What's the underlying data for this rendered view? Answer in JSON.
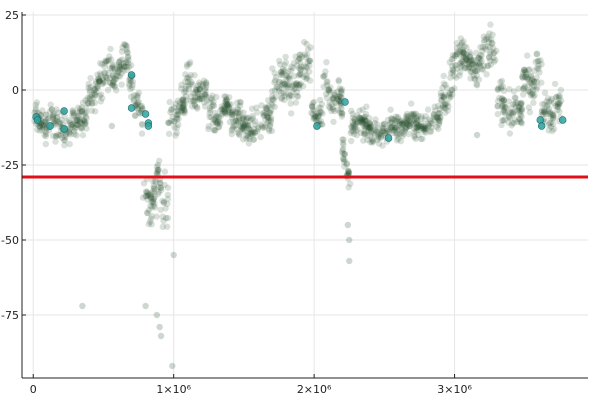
{
  "chart_data": {
    "type": "scatter",
    "xlim": [
      -80000,
      3950000
    ],
    "ylim": [
      -96,
      26
    ],
    "grid": true,
    "legend": "none",
    "x_ticks": [
      {
        "value": 0,
        "label": "0"
      },
      {
        "value": 1000000,
        "label": "1×10⁶"
      },
      {
        "value": 2000000,
        "label": "2×10⁶"
      },
      {
        "value": 3000000,
        "label": "3×10⁶"
      }
    ],
    "y_ticks": [
      {
        "value": 25,
        "label": "25"
      },
      {
        "value": 0,
        "label": "0"
      },
      {
        "value": -25,
        "label": "-25"
      },
      {
        "value": -50,
        "label": "-50"
      },
      {
        "value": -75,
        "label": "-75"
      }
    ],
    "threshold": {
      "value": -29,
      "color": "#e0101a"
    },
    "colors": {
      "main": "#1e4a24",
      "highlight": "#2fa3a0"
    },
    "segments": [
      {
        "x": [
          0,
          80000
        ],
        "y_start": -8,
        "y_end": -12,
        "spread": 4
      },
      {
        "x": [
          80000,
          380000
        ],
        "y_start": -13,
        "y_end": -10,
        "spread": 5
      },
      {
        "x": [
          380000,
          480000
        ],
        "y_start": -5,
        "y_end": 3,
        "spread": 5
      },
      {
        "x": [
          480000,
          680000
        ],
        "y_start": 3,
        "y_end": 10,
        "spread": 6
      },
      {
        "x": [
          680000,
          780000
        ],
        "y_start": 2,
        "y_end": -8,
        "spread": 6
      },
      {
        "x": [
          780000,
          880000
        ],
        "y_start": -35,
        "y_end": -38,
        "spread": 6
      },
      {
        "x": [
          880000,
          960000
        ],
        "y_start": -30,
        "y_end": -40,
        "spread": 8
      },
      {
        "x": [
          960000,
          1080000
        ],
        "y_start": -12,
        "y_end": -5,
        "spread": 5
      },
      {
        "x": [
          1080000,
          1240000
        ],
        "y_start": 0,
        "y_end": -3,
        "spread": 6
      },
      {
        "x": [
          1240000,
          1400000
        ],
        "y_start": -10,
        "y_end": -5,
        "spread": 5
      },
      {
        "x": [
          1400000,
          1700000
        ],
        "y_start": -12,
        "y_end": -10,
        "spread": 5
      },
      {
        "x": [
          1700000,
          1980000
        ],
        "y_start": 0,
        "y_end": 8,
        "spread": 7
      },
      {
        "x": [
          1980000,
          2060000
        ],
        "y_start": -8,
        "y_end": -10,
        "spread": 5
      },
      {
        "x": [
          2060000,
          2200000
        ],
        "y_start": 2,
        "y_end": -5,
        "spread": 6
      },
      {
        "x": [
          2200000,
          2260000
        ],
        "y_start": -20,
        "y_end": -32,
        "spread": 4
      },
      {
        "x": [
          2260000,
          2650000
        ],
        "y_start": -12,
        "y_end": -14,
        "spread": 4
      },
      {
        "x": [
          2650000,
          2900000
        ],
        "y_start": -12,
        "y_end": -10,
        "spread": 4
      },
      {
        "x": [
          2900000,
          3000000
        ],
        "y_start": -5,
        "y_end": 5,
        "spread": 6
      },
      {
        "x": [
          3000000,
          3300000
        ],
        "y_start": 8,
        "y_end": 12,
        "spread": 6
      },
      {
        "x": [
          3300000,
          3480000
        ],
        "y_start": -5,
        "y_end": -8,
        "spread": 6
      },
      {
        "x": [
          3480000,
          3620000
        ],
        "y_start": 0,
        "y_end": 5,
        "spread": 7
      },
      {
        "x": [
          3620000,
          3760000
        ],
        "y_start": -8,
        "y_end": -5,
        "spread": 5
      }
    ],
    "outliers": [
      [
        350000,
        -72
      ],
      [
        800000,
        -72
      ],
      [
        880000,
        -75
      ],
      [
        900000,
        -79
      ],
      [
        910000,
        -82
      ],
      [
        990000,
        -92
      ],
      [
        1000000,
        -55
      ],
      [
        2240000,
        -45
      ],
      [
        2250000,
        -50
      ],
      [
        2250000,
        -57
      ],
      [
        560000,
        -12
      ],
      [
        3160000,
        -15
      ]
    ],
    "highlights": [
      [
        20000,
        -9
      ],
      [
        30000,
        -10
      ],
      [
        120000,
        -12
      ],
      [
        220000,
        -13
      ],
      [
        220000,
        -7
      ],
      [
        700000,
        5
      ],
      [
        700000,
        -6
      ],
      [
        800000,
        -8
      ],
      [
        820000,
        -11
      ],
      [
        820000,
        -12
      ],
      [
        2020000,
        -12
      ],
      [
        2220000,
        -4
      ],
      [
        2530000,
        -16
      ],
      [
        3610000,
        -10
      ],
      [
        3620000,
        -12
      ],
      [
        3770000,
        -10
      ]
    ]
  }
}
